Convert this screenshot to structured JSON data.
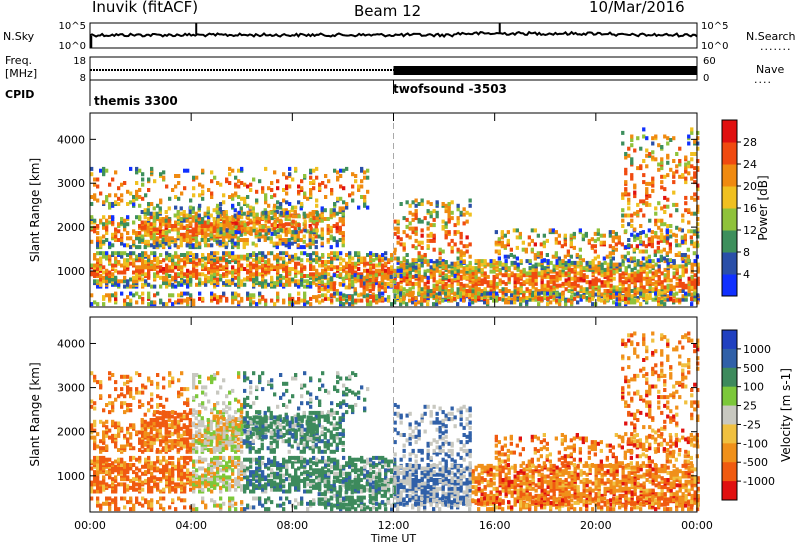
{
  "header": {
    "station": "Inuvik (fitACF)",
    "beam": "Beam 12",
    "date": "10/Mar/2016"
  },
  "noise_panel": {
    "left_label": "N.Sky",
    "right_label": "N.Search",
    "left_ticks": [
      "10^5",
      "10^0"
    ],
    "right_ticks": [
      "10^5",
      "10^0"
    ]
  },
  "freq_panel": {
    "left_label_1": "Freq.",
    "left_label_2": "[MHz]",
    "left_ticks": [
      "18",
      "8"
    ],
    "right_ticks": [
      "60",
      "0"
    ],
    "right_label": "Nave"
  },
  "cpid_panel": {
    "label": "CPID",
    "modes": [
      {
        "name": "themis 3300",
        "start_hour": 0
      },
      {
        "name": "twofsound -3503",
        "start_hour": 12
      }
    ]
  },
  "chart_data": [
    {
      "type": "heatmap",
      "name": "power",
      "ylabel": "Slant Range [km]",
      "xlabel": "Time UT",
      "ylim": [
        180,
        4600
      ],
      "y_ticks": [
        "1000",
        "2000",
        "3000",
        "4000"
      ],
      "x_ticks": [
        "00:00",
        "04:00",
        "08:00",
        "12:00",
        "16:00",
        "20:00",
        "00:00"
      ],
      "colorbar": {
        "label": "Power [dB]",
        "ticks": [
          "4",
          "8",
          "12",
          "16",
          "20",
          "24",
          "28"
        ],
        "colors": [
          "#1030ff",
          "#2a4fa8",
          "#3d8f5c",
          "#8fc23a",
          "#f0c020",
          "#f08a10",
          "#f04a10",
          "#e01010"
        ]
      }
    },
    {
      "type": "heatmap",
      "name": "velocity",
      "ylabel": "Slant Range [km]",
      "xlabel": "Time UT",
      "ylim": [
        180,
        4600
      ],
      "y_ticks": [
        "1000",
        "2000",
        "3000",
        "4000"
      ],
      "x_ticks": [
        "00:00",
        "04:00",
        "08:00",
        "12:00",
        "16:00",
        "20:00",
        "00:00"
      ],
      "colorbar": {
        "label": "Velocity [m s-1]",
        "ticks": [
          "1000",
          "500",
          "100",
          "25",
          "-25",
          "-100",
          "-500",
          "-1000"
        ],
        "colors": [
          "#2040c0",
          "#3060a8",
          "#3d8a5c",
          "#7cc83a",
          "#c8c8c0",
          "#f0c040",
          "#f0901a",
          "#f05a10",
          "#e01010"
        ]
      }
    }
  ]
}
